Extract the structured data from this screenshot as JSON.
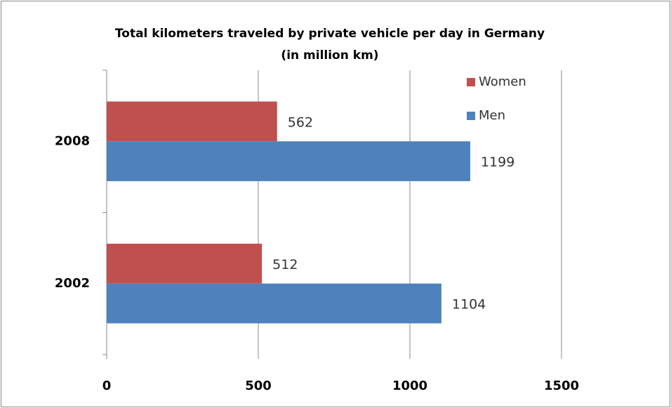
{
  "chart_data": {
    "type": "bar",
    "orientation": "horizontal",
    "title": "Total kilometers traveled by private vehicle per day in Germany",
    "subtitle": "(in million km)",
    "categories": [
      "2002",
      "2008"
    ],
    "series": [
      {
        "name": "Women",
        "color": "#c0504d",
        "values": [
          512,
          562
        ]
      },
      {
        "name": "Men",
        "color": "#4f81bd",
        "values": [
          1104,
          1199
        ]
      }
    ],
    "xlim": [
      0,
      1500
    ],
    "xticks": [
      0,
      500,
      1000,
      1500
    ],
    "grid": true,
    "legend": "top-right"
  }
}
